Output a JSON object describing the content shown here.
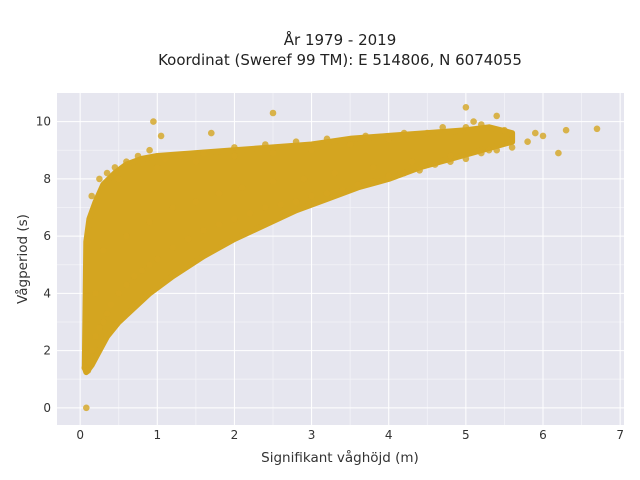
{
  "chart_data": {
    "type": "scatter",
    "title": "År 1979 - 2019",
    "subtitle": "Koordinat (Sweref 99 TM): E 514806, N 6074055",
    "xlabel": "Signifikant våghöjd (m)",
    "ylabel": "Vågperiod (s)",
    "xlim": [
      -0.3,
      7.05
    ],
    "ylim": [
      -0.6,
      11.0
    ],
    "xticks": [
      "0",
      "1",
      "2",
      "3",
      "4",
      "5",
      "6",
      "7"
    ],
    "yticks": [
      "0",
      "2",
      "4",
      "6",
      "8",
      "10"
    ],
    "grid": true,
    "legend": "none",
    "marker_color": "#d4a520",
    "background_color": "#e6e6ef",
    "series": [
      {
        "description_points": "x = significant wave height (m), y = wave period (s); dense cloud sampled along its envelope",
        "x": [
          0.08,
          0.06,
          0.1,
          0.12,
          0.15,
          0.2,
          0.25,
          0.3,
          0.35,
          0.4,
          0.5,
          0.6,
          0.7,
          0.8,
          0.9,
          1.0,
          1.2,
          1.4,
          1.6,
          1.8,
          2.0,
          2.2,
          2.4,
          2.6,
          2.8,
          3.0,
          3.2,
          3.4,
          3.6,
          3.8,
          4.0,
          4.2,
          4.4,
          4.6,
          4.8,
          5.0,
          5.2,
          5.4,
          5.6,
          5.8,
          6.0,
          6.3,
          6.7,
          0.5,
          1.0,
          1.5,
          2.0,
          2.5,
          3.0,
          3.5,
          4.0,
          4.5,
          5.0,
          0.1,
          0.15,
          0.25,
          0.35,
          0.45,
          0.6,
          0.75,
          0.9,
          1.1,
          1.3,
          1.6,
          2.0,
          2.4,
          2.8,
          3.2,
          3.7,
          4.2,
          4.7,
          5.1,
          5.5,
          5.9,
          6.2,
          0.2,
          0.3,
          0.6,
          0.9,
          1.2,
          1.5,
          1.8,
          2.1,
          2.5,
          2.9,
          3.3,
          3.8,
          4.3,
          4.8,
          5.3,
          0.95,
          1.05,
          1.7,
          2.5,
          5.0,
          5.2,
          5.4
        ],
        "y": [
          0.0,
          1.4,
          1.3,
          1.6,
          2.0,
          2.5,
          2.8,
          3.0,
          3.3,
          3.6,
          4.0,
          4.3,
          4.6,
          4.8,
          5.0,
          5.2,
          5.6,
          5.9,
          6.2,
          6.4,
          6.6,
          6.8,
          7.0,
          7.1,
          7.2,
          7.4,
          7.5,
          7.6,
          7.8,
          7.9,
          8.1,
          8.2,
          8.3,
          8.5,
          8.6,
          8.7,
          8.9,
          9.0,
          9.1,
          9.3,
          9.5,
          9.7,
          9.75,
          8.0,
          8.4,
          8.6,
          8.8,
          8.9,
          9.0,
          9.2,
          9.4,
          9.6,
          9.8,
          5.8,
          7.4,
          8.0,
          8.2,
          8.4,
          8.6,
          8.8,
          9.0,
          8.7,
          8.8,
          8.9,
          9.1,
          9.2,
          9.3,
          9.4,
          9.5,
          9.6,
          9.8,
          10.0,
          9.7,
          9.6,
          8.9,
          4.0,
          5.5,
          6.0,
          6.5,
          7.0,
          7.2,
          7.5,
          7.7,
          7.9,
          8.0,
          8.2,
          8.4,
          8.6,
          8.8,
          9.0,
          10.0,
          9.5,
          9.6,
          10.3,
          10.5,
          9.9,
          10.2
        ]
      }
    ]
  }
}
